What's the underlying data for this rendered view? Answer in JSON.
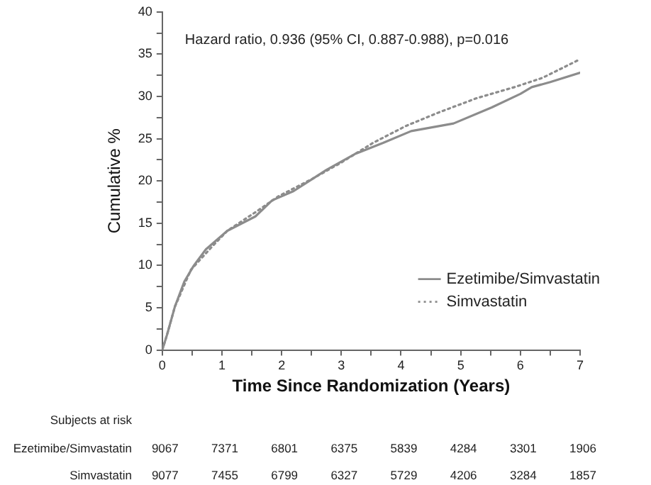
{
  "chart_data": {
    "type": "line",
    "xlabel": "Time Since Randomization (Years)",
    "ylabel": "Cumulative %",
    "xlim": [
      0,
      7
    ],
    "ylim": [
      0,
      40
    ],
    "xticks": [
      0,
      {
        "value": 0.5,
        "label": null
      },
      1,
      {
        "value": 1.5,
        "label": null
      },
      2,
      {
        "value": 2.5,
        "label": null
      },
      3,
      {
        "value": 3.5,
        "label": null
      },
      4,
      {
        "value": 4.5,
        "label": null
      },
      5,
      {
        "value": 5.5,
        "label": null
      },
      6,
      {
        "value": 6.5,
        "label": null
      },
      7
    ],
    "yticks": [
      0,
      {
        "value": 2.5,
        "label": null
      },
      5,
      {
        "value": 7.5,
        "label": null
      },
      10,
      {
        "value": 12.5,
        "label": null
      },
      15,
      {
        "value": 17.5,
        "label": null
      },
      20,
      {
        "value": 22.5,
        "label": null
      },
      25,
      {
        "value": 27.5,
        "label": null
      },
      30,
      {
        "value": 32.5,
        "label": null
      },
      35,
      {
        "value": 37.5,
        "label": null
      },
      40
    ],
    "grid": false,
    "legend": "bottom right",
    "marker": "none",
    "series": [
      {
        "name": "Ezetimibe/Simvastatin",
        "color": "#8c8c8c",
        "line_style": "solid",
        "x": [
          0,
          0.08,
          0.21,
          0.37,
          0.53,
          0.73,
          1.09,
          1.56,
          1.84,
          2.2,
          2.75,
          3.23,
          3.7,
          4.17,
          4.88,
          5.52,
          6.0,
          6.19,
          6.5,
          7
        ],
        "values": [
          0,
          1.8,
          5.1,
          8.1,
          10,
          11.9,
          14.1,
          15.8,
          17.7,
          18.8,
          21.3,
          23.2,
          24.5,
          25.9,
          26.8,
          28.7,
          30.3,
          31.1,
          31.7,
          32.8
        ]
      },
      {
        "name": "Simvastatin",
        "color": "#8c8c8c",
        "line_style": "dotted",
        "x": [
          0,
          0.08,
          0.21,
          0.48,
          0.83,
          1.09,
          1.56,
          1.95,
          2.5,
          2.98,
          3.53,
          4.08,
          4.63,
          5.27,
          5.9,
          6.37,
          7
        ],
        "values": [
          0,
          1.8,
          5.1,
          9.5,
          12.2,
          14.1,
          16.3,
          18.2,
          20.2,
          22.1,
          24.5,
          26.5,
          28.1,
          29.8,
          31.1,
          32.2,
          34.4
        ]
      }
    ],
    "annotations": [
      "Hazard ratio, 0.936 (95% CI, 0.887-0.988), p=0.016",
      "Subjects at risk",
      "Ezetimibe/Simvastatin",
      "9067",
      "7371",
      "6801",
      "6375",
      "5839",
      "4284",
      "3301",
      "1906",
      "Simvastatin",
      "9077",
      "7455",
      "6799",
      "6327",
      "5729",
      "4206",
      "3284",
      "1857"
    ]
  }
}
